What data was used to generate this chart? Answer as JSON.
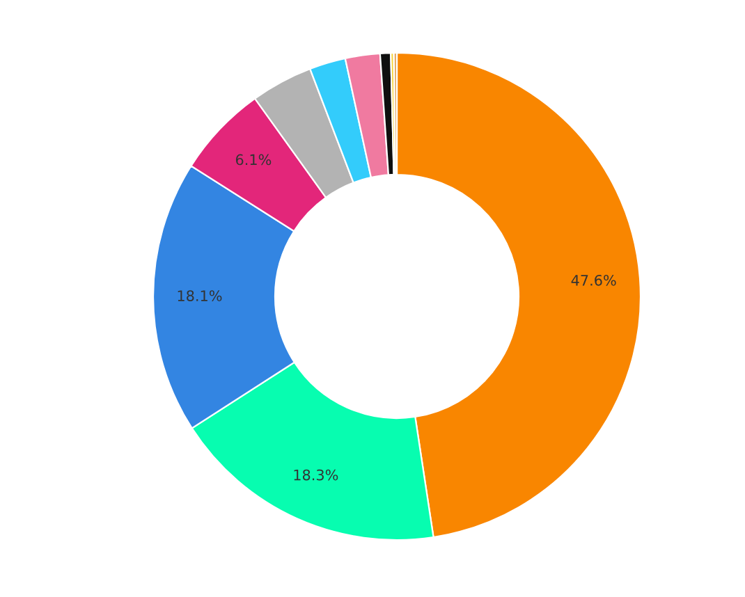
{
  "chart_data": {
    "type": "donut",
    "categories": [
      null,
      null,
      null,
      null,
      null,
      null,
      null,
      null,
      null,
      null
    ],
    "values": [
      47.6,
      18.3,
      18.1,
      6.1,
      4.1,
      2.4,
      2.3,
      0.7,
      0.2,
      0.2
    ],
    "colors": [
      "#f98600",
      "#07fdb0",
      "#3385e2",
      "#e3267a",
      "#b3b3b3",
      "#33ccfb",
      "#f07aa0",
      "#0f0f0f",
      "#f5d033",
      "#e6a65c"
    ],
    "value_labels": [
      "47.6%",
      "18.3%",
      "18.1%",
      "6.1%",
      null,
      null,
      null,
      null,
      null,
      null
    ],
    "legend": false
  }
}
